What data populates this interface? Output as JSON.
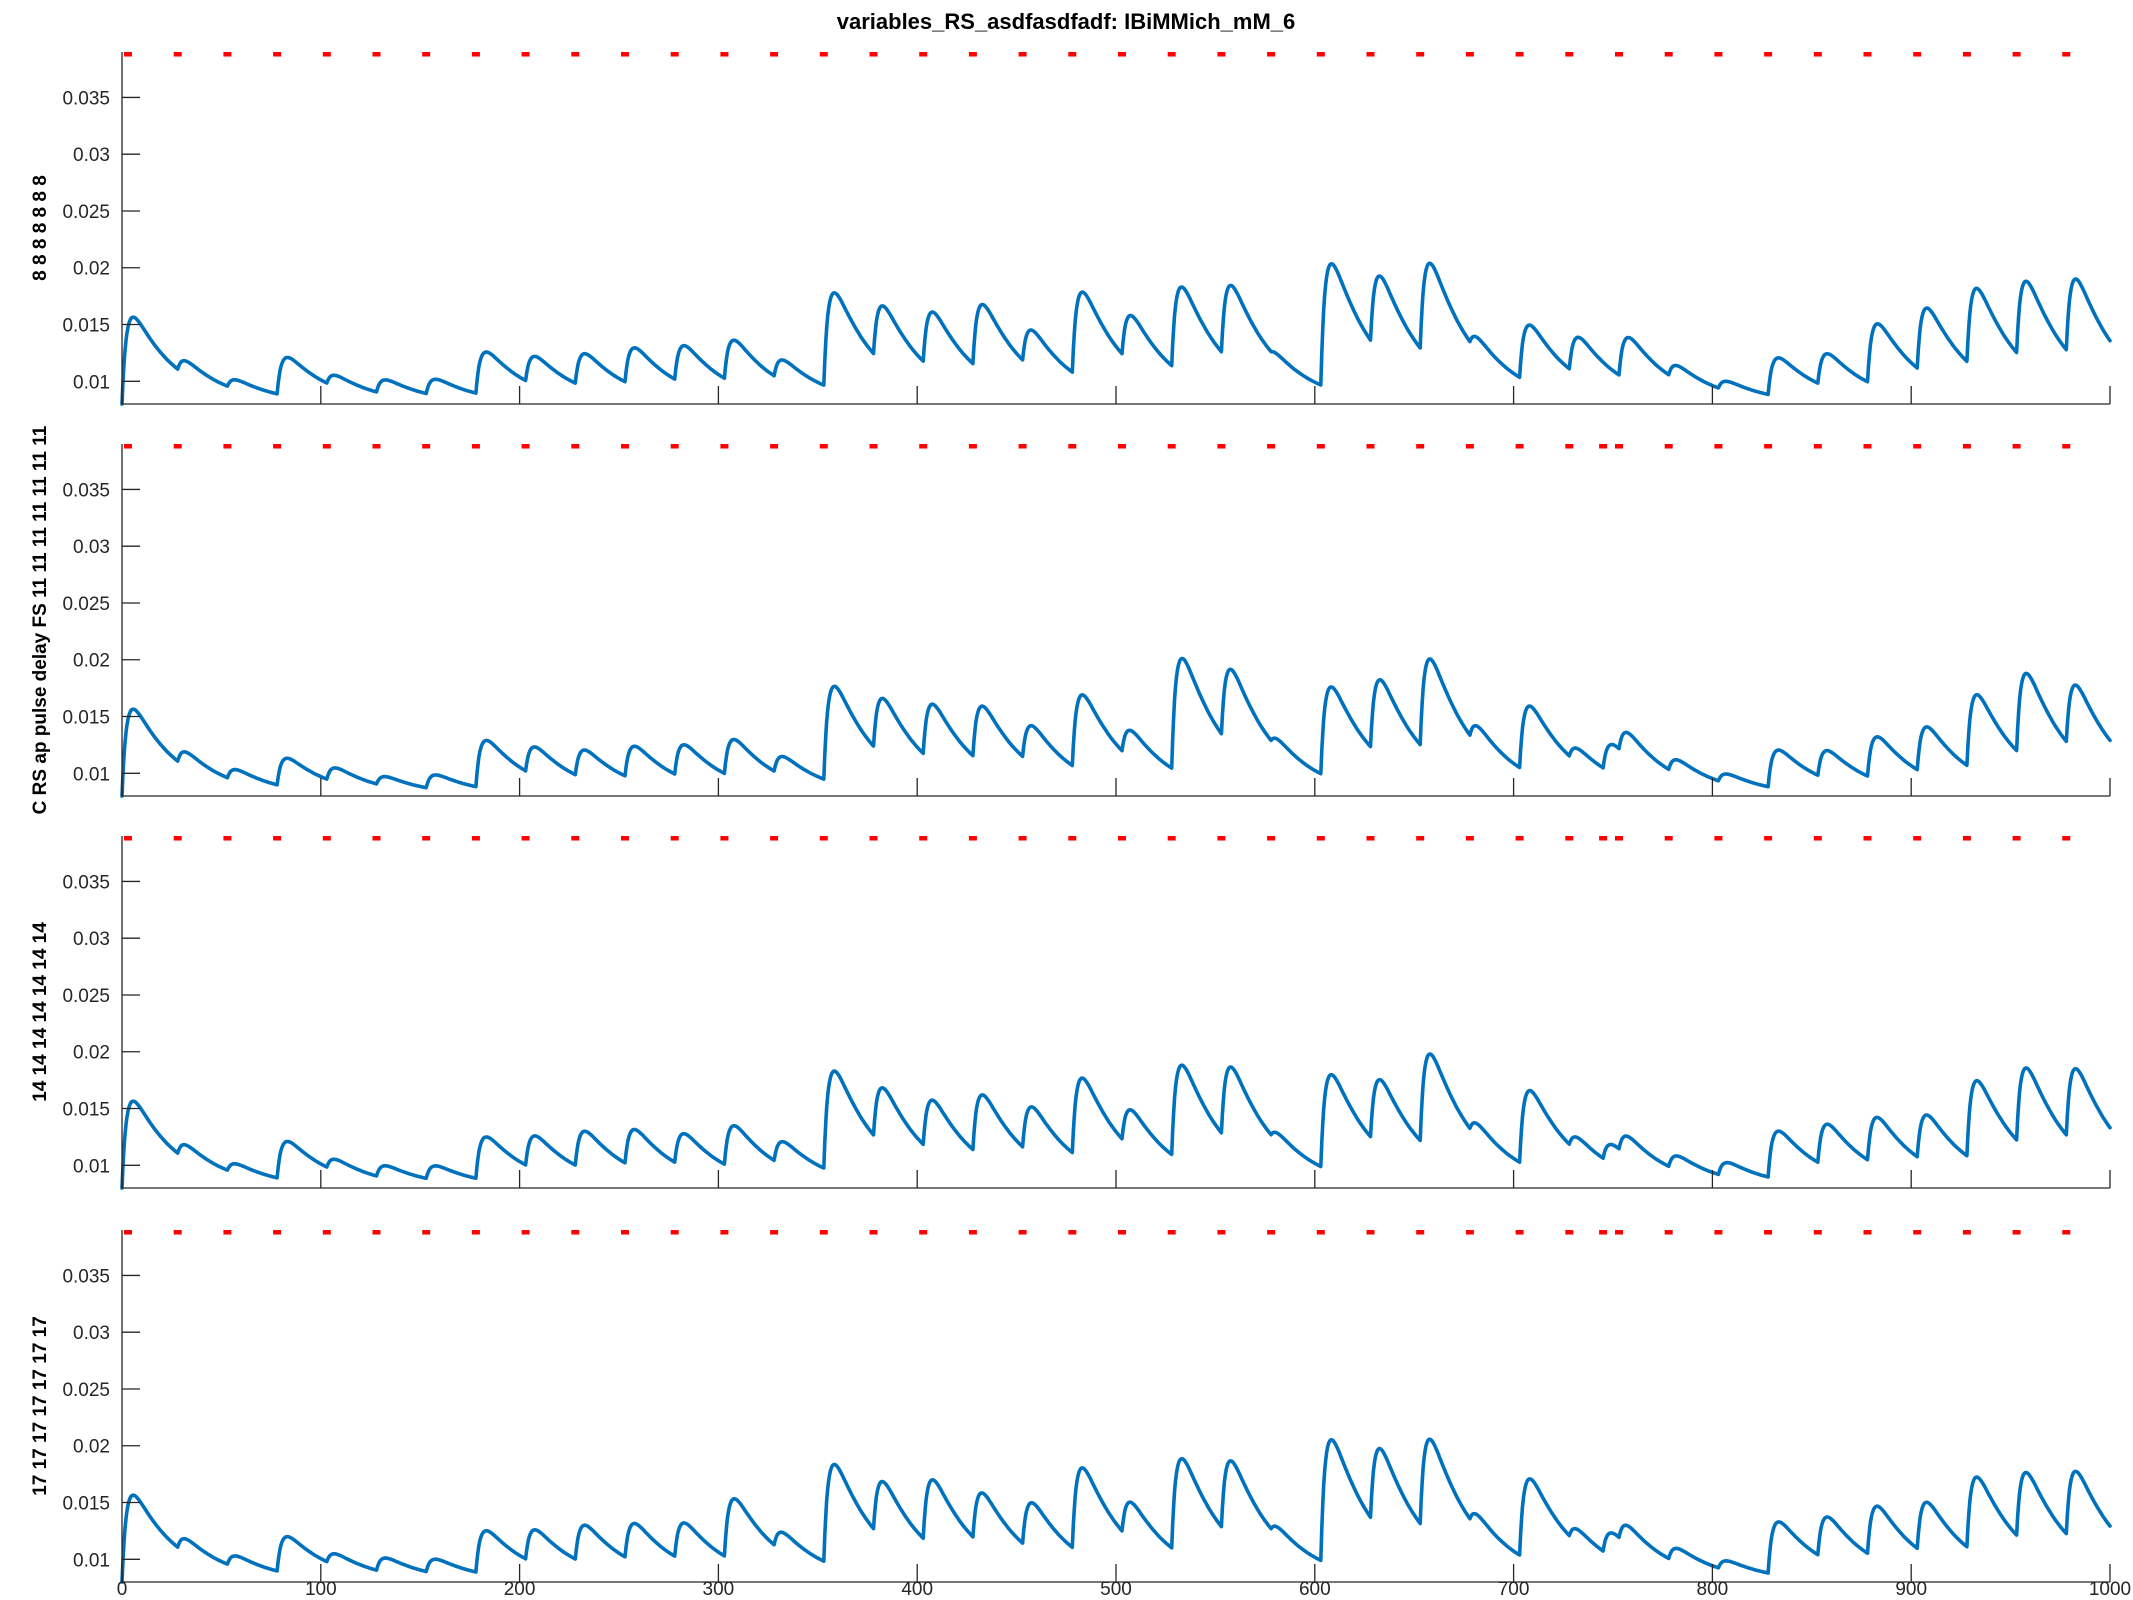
{
  "figure": {
    "title": "variables_RS_asdfasdfadf: IBiMMich_mM_6"
  },
  "colors": {
    "series": "#0072bd",
    "markers": "#ff0000",
    "axes": "#262626"
  },
  "chart_data": [
    {
      "type": "line",
      "panel": 1,
      "ylabel": "8 8 8 8 8 8 8",
      "xlim": [
        0,
        1000
      ],
      "ylim": [
        0.008,
        0.039
      ],
      "yticks": [
        0.01,
        0.015,
        0.02,
        0.025,
        0.03,
        0.035
      ],
      "ytick_labels": [
        "0.01",
        "0.015",
        "0.02",
        "0.025",
        "0.03",
        "0.035"
      ],
      "xticks": [
        0,
        100,
        200,
        300,
        400,
        500,
        600,
        700,
        800,
        900,
        1000
      ],
      "xtick_labels": [],
      "marker_y": 0.0388,
      "marker_x": [
        3,
        28,
        53,
        78,
        103,
        128,
        153,
        178,
        203,
        228,
        253,
        278,
        303,
        328,
        353,
        378,
        403,
        428,
        453,
        478,
        503,
        528,
        553,
        578,
        603,
        628,
        653,
        678,
        703,
        728,
        753,
        778,
        803,
        828,
        853,
        878,
        903,
        928,
        953,
        978
      ],
      "pulses": [
        {
          "t": 0,
          "amp": 0.009
        },
        {
          "t": 28,
          "amp": 0.0015
        },
        {
          "t": 53,
          "amp": 0.001
        },
        {
          "t": 78,
          "amp": 0.004
        },
        {
          "t": 103,
          "amp": 0.0012
        },
        {
          "t": 128,
          "amp": 0.0015
        },
        {
          "t": 153,
          "amp": 0.0017
        },
        {
          "t": 178,
          "amp": 0.0045
        },
        {
          "t": 203,
          "amp": 0.003
        },
        {
          "t": 228,
          "amp": 0.0035
        },
        {
          "t": 253,
          "amp": 0.004
        },
        {
          "t": 278,
          "amp": 0.004
        },
        {
          "t": 303,
          "amp": 0.0045
        },
        {
          "t": 328,
          "amp": 0.0022
        },
        {
          "t": 353,
          "amp": 0.01
        },
        {
          "t": 378,
          "amp": 0.006
        },
        {
          "t": 403,
          "amp": 0.006
        },
        {
          "t": 428,
          "amp": 0.007
        },
        {
          "t": 453,
          "amp": 0.004
        },
        {
          "t": 478,
          "amp": 0.009
        },
        {
          "t": 503,
          "amp": 0.005
        },
        {
          "t": 528,
          "amp": 0.009
        },
        {
          "t": 553,
          "amp": 0.008
        },
        {
          "t": 578,
          "amp": 0.0005
        },
        {
          "t": 603,
          "amp": 0.013
        },
        {
          "t": 628,
          "amp": 0.008
        },
        {
          "t": 653,
          "amp": 0.01
        },
        {
          "t": 678,
          "amp": 0.0015
        },
        {
          "t": 703,
          "amp": 0.006
        },
        {
          "t": 728,
          "amp": 0.004
        },
        {
          "t": 753,
          "amp": 0.0045
        },
        {
          "t": 778,
          "amp": 0.0015
        },
        {
          "t": 803,
          "amp": 0.001
        },
        {
          "t": 828,
          "amp": 0.004
        },
        {
          "t": 853,
          "amp": 0.0035
        },
        {
          "t": 878,
          "amp": 0.0065
        },
        {
          "t": 903,
          "amp": 0.007
        },
        {
          "t": 928,
          "amp": 0.0085
        },
        {
          "t": 953,
          "amp": 0.0085
        },
        {
          "t": 978,
          "amp": 0.0085
        }
      ]
    },
    {
      "type": "line",
      "panel": 2,
      "ylabel": "C RS ap pulse delay FS 11 11 11 11 11 11 11",
      "xlim": [
        0,
        1000
      ],
      "ylim": [
        0.008,
        0.039
      ],
      "yticks": [
        0.01,
        0.015,
        0.02,
        0.025,
        0.03,
        0.035
      ],
      "ytick_labels": [
        "0.01",
        "0.015",
        "0.02",
        "0.025",
        "0.03",
        "0.035"
      ],
      "xticks": [
        0,
        100,
        200,
        300,
        400,
        500,
        600,
        700,
        800,
        900,
        1000
      ],
      "xtick_labels": [],
      "marker_y": 0.0388,
      "marker_x": [
        3,
        28,
        53,
        78,
        103,
        128,
        153,
        178,
        203,
        228,
        253,
        278,
        303,
        328,
        353,
        378,
        403,
        428,
        453,
        478,
        503,
        528,
        553,
        578,
        603,
        628,
        653,
        678,
        703,
        728,
        745,
        753,
        778,
        803,
        828,
        853,
        878,
        903,
        928,
        953,
        978
      ],
      "pulses": [
        {
          "t": 0,
          "amp": 0.009
        },
        {
          "t": 28,
          "amp": 0.0016
        },
        {
          "t": 53,
          "amp": 0.0012
        },
        {
          "t": 78,
          "amp": 0.003
        },
        {
          "t": 103,
          "amp": 0.0015
        },
        {
          "t": 128,
          "amp": 0.001
        },
        {
          "t": 153,
          "amp": 0.0015
        },
        {
          "t": 178,
          "amp": 0.005
        },
        {
          "t": 203,
          "amp": 0.003
        },
        {
          "t": 228,
          "amp": 0.003
        },
        {
          "t": 253,
          "amp": 0.0035
        },
        {
          "t": 278,
          "amp": 0.0035
        },
        {
          "t": 303,
          "amp": 0.004
        },
        {
          "t": 328,
          "amp": 0.002
        },
        {
          "t": 353,
          "amp": 0.01
        },
        {
          "t": 378,
          "amp": 0.006
        },
        {
          "t": 403,
          "amp": 0.006
        },
        {
          "t": 428,
          "amp": 0.006
        },
        {
          "t": 453,
          "amp": 0.004
        },
        {
          "t": 478,
          "amp": 0.008
        },
        {
          "t": 503,
          "amp": 0.003
        },
        {
          "t": 528,
          "amp": 0.012
        },
        {
          "t": 553,
          "amp": 0.008
        },
        {
          "t": 578,
          "amp": 0.001
        },
        {
          "t": 603,
          "amp": 0.0095
        },
        {
          "t": 628,
          "amp": 0.008
        },
        {
          "t": 653,
          "amp": 0.01
        },
        {
          "t": 678,
          "amp": 0.002
        },
        {
          "t": 703,
          "amp": 0.007
        },
        {
          "t": 728,
          "amp": 0.0015
        },
        {
          "t": 745,
          "amp": 0.003
        },
        {
          "t": 753,
          "amp": 0.0025
        },
        {
          "t": 778,
          "amp": 0.0015
        },
        {
          "t": 803,
          "amp": 0.001
        },
        {
          "t": 828,
          "amp": 0.004
        },
        {
          "t": 853,
          "amp": 0.003
        },
        {
          "t": 878,
          "amp": 0.0045
        },
        {
          "t": 903,
          "amp": 0.005
        },
        {
          "t": 928,
          "amp": 0.008
        },
        {
          "t": 953,
          "amp": 0.009
        },
        {
          "t": 978,
          "amp": 0.007
        }
      ]
    },
    {
      "type": "line",
      "panel": 3,
      "ylabel": "14 14 14 14 14 14 14",
      "xlim": [
        0,
        1000
      ],
      "ylim": [
        0.008,
        0.039
      ],
      "yticks": [
        0.01,
        0.015,
        0.02,
        0.025,
        0.03,
        0.035
      ],
      "ytick_labels": [
        "0.01",
        "0.015",
        "0.02",
        "0.025",
        "0.03",
        "0.035"
      ],
      "xticks": [
        0,
        100,
        200,
        300,
        400,
        500,
        600,
        700,
        800,
        900,
        1000
      ],
      "xtick_labels": [],
      "marker_y": 0.0388,
      "marker_x": [
        3,
        28,
        53,
        78,
        103,
        128,
        153,
        178,
        203,
        228,
        253,
        278,
        303,
        328,
        353,
        378,
        403,
        428,
        453,
        478,
        503,
        528,
        553,
        578,
        603,
        628,
        653,
        678,
        703,
        728,
        745,
        753,
        778,
        803,
        828,
        853,
        878,
        903,
        928,
        953,
        978
      ],
      "pulses": [
        {
          "t": 0,
          "amp": 0.009
        },
        {
          "t": 28,
          "amp": 0.0015
        },
        {
          "t": 53,
          "amp": 0.001
        },
        {
          "t": 78,
          "amp": 0.004
        },
        {
          "t": 103,
          "amp": 0.0012
        },
        {
          "t": 128,
          "amp": 0.0013
        },
        {
          "t": 153,
          "amp": 0.0015
        },
        {
          "t": 178,
          "amp": 0.0045
        },
        {
          "t": 203,
          "amp": 0.0035
        },
        {
          "t": 228,
          "amp": 0.004
        },
        {
          "t": 253,
          "amp": 0.004
        },
        {
          "t": 278,
          "amp": 0.0035
        },
        {
          "t": 303,
          "amp": 0.0045
        },
        {
          "t": 328,
          "amp": 0.0025
        },
        {
          "t": 353,
          "amp": 0.0105
        },
        {
          "t": 378,
          "amp": 0.006
        },
        {
          "t": 403,
          "amp": 0.0055
        },
        {
          "t": 428,
          "amp": 0.0065
        },
        {
          "t": 453,
          "amp": 0.005
        },
        {
          "t": 478,
          "amp": 0.0085
        },
        {
          "t": 503,
          "amp": 0.004
        },
        {
          "t": 528,
          "amp": 0.01
        },
        {
          "t": 553,
          "amp": 0.008
        },
        {
          "t": 578,
          "amp": 0.001
        },
        {
          "t": 603,
          "amp": 0.01
        },
        {
          "t": 628,
          "amp": 0.007
        },
        {
          "t": 653,
          "amp": 0.01
        },
        {
          "t": 678,
          "amp": 0.0015
        },
        {
          "t": 703,
          "amp": 0.008
        },
        {
          "t": 728,
          "amp": 0.0015
        },
        {
          "t": 745,
          "amp": 0.002
        },
        {
          "t": 753,
          "amp": 0.002
        },
        {
          "t": 778,
          "amp": 0.0015
        },
        {
          "t": 803,
          "amp": 0.0015
        },
        {
          "t": 828,
          "amp": 0.005
        },
        {
          "t": 853,
          "amp": 0.0045
        },
        {
          "t": 878,
          "amp": 0.005
        },
        {
          "t": 903,
          "amp": 0.005
        },
        {
          "t": 928,
          "amp": 0.0085
        },
        {
          "t": 953,
          "amp": 0.0085
        },
        {
          "t": 978,
          "amp": 0.008
        }
      ]
    },
    {
      "type": "line",
      "panel": 4,
      "ylabel": "17 17 17 17 17 17 17",
      "xlim": [
        0,
        1000
      ],
      "ylim": [
        0.008,
        0.039
      ],
      "yticks": [
        0.01,
        0.015,
        0.02,
        0.025,
        0.03,
        0.035
      ],
      "ytick_labels": [
        "0.01",
        "0.015",
        "0.02",
        "0.025",
        "0.03",
        "0.035"
      ],
      "xticks": [
        0,
        100,
        200,
        300,
        400,
        500,
        600,
        700,
        800,
        900,
        1000
      ],
      "xtick_labels": [
        "0",
        "100",
        "200",
        "300",
        "400",
        "500",
        "600",
        "700",
        "800",
        "900",
        "1000"
      ],
      "marker_y": 0.0388,
      "marker_x": [
        3,
        28,
        53,
        78,
        103,
        128,
        153,
        178,
        203,
        228,
        253,
        278,
        303,
        328,
        353,
        378,
        403,
        428,
        453,
        478,
        503,
        528,
        553,
        578,
        603,
        628,
        653,
        678,
        703,
        728,
        745,
        753,
        778,
        803,
        828,
        853,
        878,
        903,
        928,
        953,
        978
      ],
      "pulses": [
        {
          "t": 0,
          "amp": 0.009
        },
        {
          "t": 28,
          "amp": 0.0015
        },
        {
          "t": 53,
          "amp": 0.0012
        },
        {
          "t": 78,
          "amp": 0.0038
        },
        {
          "t": 103,
          "amp": 0.0012
        },
        {
          "t": 128,
          "amp": 0.0015
        },
        {
          "t": 153,
          "amp": 0.0015
        },
        {
          "t": 178,
          "amp": 0.0045
        },
        {
          "t": 203,
          "amp": 0.0035
        },
        {
          "t": 228,
          "amp": 0.004
        },
        {
          "t": 253,
          "amp": 0.004
        },
        {
          "t": 278,
          "amp": 0.004
        },
        {
          "t": 303,
          "amp": 0.0065
        },
        {
          "t": 328,
          "amp": 0.002
        },
        {
          "t": 353,
          "amp": 0.0105
        },
        {
          "t": 378,
          "amp": 0.006
        },
        {
          "t": 403,
          "amp": 0.007
        },
        {
          "t": 428,
          "amp": 0.0055
        },
        {
          "t": 453,
          "amp": 0.005
        },
        {
          "t": 478,
          "amp": 0.009
        },
        {
          "t": 503,
          "amp": 0.004
        },
        {
          "t": 528,
          "amp": 0.01
        },
        {
          "t": 553,
          "amp": 0.008
        },
        {
          "t": 578,
          "amp": 0.001
        },
        {
          "t": 603,
          "amp": 0.013
        },
        {
          "t": 628,
          "amp": 0.0085
        },
        {
          "t": 653,
          "amp": 0.01
        },
        {
          "t": 678,
          "amp": 0.0015
        },
        {
          "t": 703,
          "amp": 0.0085
        },
        {
          "t": 728,
          "amp": 0.0015
        },
        {
          "t": 745,
          "amp": 0.0025
        },
        {
          "t": 753,
          "amp": 0.002
        },
        {
          "t": 778,
          "amp": 0.0015
        },
        {
          "t": 803,
          "amp": 0.001
        },
        {
          "t": 828,
          "amp": 0.0055
        },
        {
          "t": 853,
          "amp": 0.0045
        },
        {
          "t": 878,
          "amp": 0.0055
        },
        {
          "t": 903,
          "amp": 0.0055
        },
        {
          "t": 928,
          "amp": 0.008
        },
        {
          "t": 953,
          "amp": 0.0075
        },
        {
          "t": 978,
          "amp": 0.0075
        }
      ]
    }
  ]
}
